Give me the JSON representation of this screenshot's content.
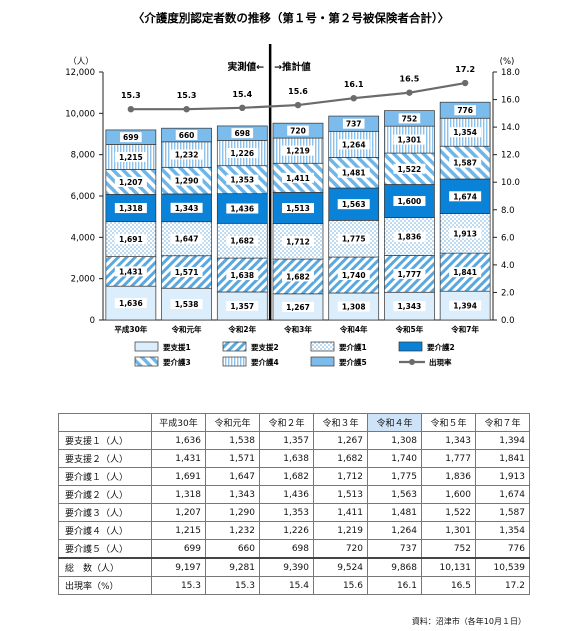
{
  "chart_data": {
    "type": "stacked-bar-with-line",
    "title": "〈介護度別認定者数の推移（第１号・第２号被保険者合計）〉",
    "left_axis_unit": "（人）",
    "right_axis_unit": "(%)",
    "ylim_left": [
      0,
      12000
    ],
    "ylim_right": [
      0.0,
      18.0
    ],
    "left_ticks": [
      "0",
      "2,000",
      "4,000",
      "6,000",
      "8,000",
      "10,000",
      "12,000"
    ],
    "right_ticks": [
      "0.0",
      "2.0",
      "4.0",
      "6.0",
      "8.0",
      "10.0",
      "12.0",
      "14.0",
      "16.0",
      "18.0"
    ],
    "categories": [
      "平成30年",
      "令和元年",
      "令和2年",
      "令和3年",
      "令和4年",
      "令和5年",
      "令和7年"
    ],
    "series": [
      {
        "name": "要支援1",
        "values": [
          1636,
          1538,
          1357,
          1267,
          1308,
          1343,
          1394
        ],
        "labels": [
          "1,636",
          "1,538",
          "1,357",
          "1,267",
          "1,308",
          "1,343",
          "1,394"
        ]
      },
      {
        "name": "要支援2",
        "values": [
          1431,
          1571,
          1638,
          1682,
          1740,
          1777,
          1841
        ],
        "labels": [
          "1,431",
          "1,571",
          "1,638",
          "1,682",
          "1,740",
          "1,777",
          "1,841"
        ]
      },
      {
        "name": "要介護1",
        "values": [
          1691,
          1647,
          1682,
          1712,
          1775,
          1836,
          1913
        ],
        "labels": [
          "1,691",
          "1,647",
          "1,682",
          "1,712",
          "1,775",
          "1,836",
          "1,913"
        ]
      },
      {
        "name": "要介護2",
        "values": [
          1318,
          1343,
          1436,
          1513,
          1563,
          1600,
          1674
        ],
        "labels": [
          "1,318",
          "1,343",
          "1,436",
          "1,513",
          "1,563",
          "1,600",
          "1,674"
        ]
      },
      {
        "name": "要介護3",
        "values": [
          1207,
          1290,
          1353,
          1411,
          1481,
          1522,
          1587
        ],
        "labels": [
          "1,207",
          "1,290",
          "1,353",
          "1,411",
          "1,481",
          "1,522",
          "1,587"
        ]
      },
      {
        "name": "要介護4",
        "values": [
          1215,
          1232,
          1226,
          1219,
          1264,
          1301,
          1354
        ],
        "labels": [
          "1,215",
          "1,232",
          "1,226",
          "1,219",
          "1,264",
          "1,301",
          "1,354"
        ]
      },
      {
        "name": "要介護5",
        "values": [
          699,
          660,
          698,
          720,
          737,
          752,
          776
        ],
        "labels": [
          "699",
          "660",
          "698",
          "720",
          "737",
          "752",
          "776"
        ]
      }
    ],
    "line_series": {
      "name": "出現率",
      "values": [
        15.3,
        15.3,
        15.4,
        15.6,
        16.1,
        16.5,
        17.2
      ],
      "labels": [
        "15.3",
        "15.3",
        "15.4",
        "15.6",
        "16.1",
        "16.5",
        "17.2"
      ]
    },
    "annotation_actual": "実測値←",
    "annotation_forecast": "→推計値",
    "divider_after_index": 2,
    "legend_position": "bottom",
    "colors": {
      "要支援1": "#dceefb",
      "要支援2": "#5aa8e0",
      "要介護1": "#a8d0f0",
      "要介護2": "#0a82d8",
      "要介護3": "#6fb6e8",
      "要介護4": "#8cc2ec",
      "要介護5": "#7cbcec",
      "line": "#6b6b6b"
    }
  },
  "table": {
    "years": [
      "平成30年",
      "令和元年",
      "令和２年",
      "令和３年",
      "令和４年",
      "令和５年",
      "令和７年"
    ],
    "rows": [
      {
        "label": "要支援１（人）",
        "values": [
          "1,636",
          "1,538",
          "1,357",
          "1,267",
          "1,308",
          "1,343",
          "1,394"
        ]
      },
      {
        "label": "要支援２（人）",
        "values": [
          "1,431",
          "1,571",
          "1,638",
          "1,682",
          "1,740",
          "1,777",
          "1,841"
        ]
      },
      {
        "label": "要介護１（人）",
        "values": [
          "1,691",
          "1,647",
          "1,682",
          "1,712",
          "1,775",
          "1,836",
          "1,913"
        ]
      },
      {
        "label": "要介護２（人）",
        "values": [
          "1,318",
          "1,343",
          "1,436",
          "1,513",
          "1,563",
          "1,600",
          "1,674"
        ]
      },
      {
        "label": "要介護３（人）",
        "values": [
          "1,207",
          "1,290",
          "1,353",
          "1,411",
          "1,481",
          "1,522",
          "1,587"
        ]
      },
      {
        "label": "要介護４（人）",
        "values": [
          "1,215",
          "1,232",
          "1,226",
          "1,219",
          "1,264",
          "1,301",
          "1,354"
        ]
      },
      {
        "label": "要介護５（人）",
        "values": [
          "699",
          "660",
          "698",
          "720",
          "737",
          "752",
          "776"
        ]
      },
      {
        "label": "総　数（人）",
        "values": [
          "9,197",
          "9,281",
          "9,390",
          "9,524",
          "9,868",
          "10,131",
          "10,539"
        ],
        "total": true
      },
      {
        "label": "出現率（%）",
        "values": [
          "15.3",
          "15.3",
          "15.4",
          "15.6",
          "16.1",
          "16.5",
          "17.2"
        ]
      }
    ],
    "highlight_column": 4
  },
  "source_note": "資料：沼津市（各年10月１日）"
}
